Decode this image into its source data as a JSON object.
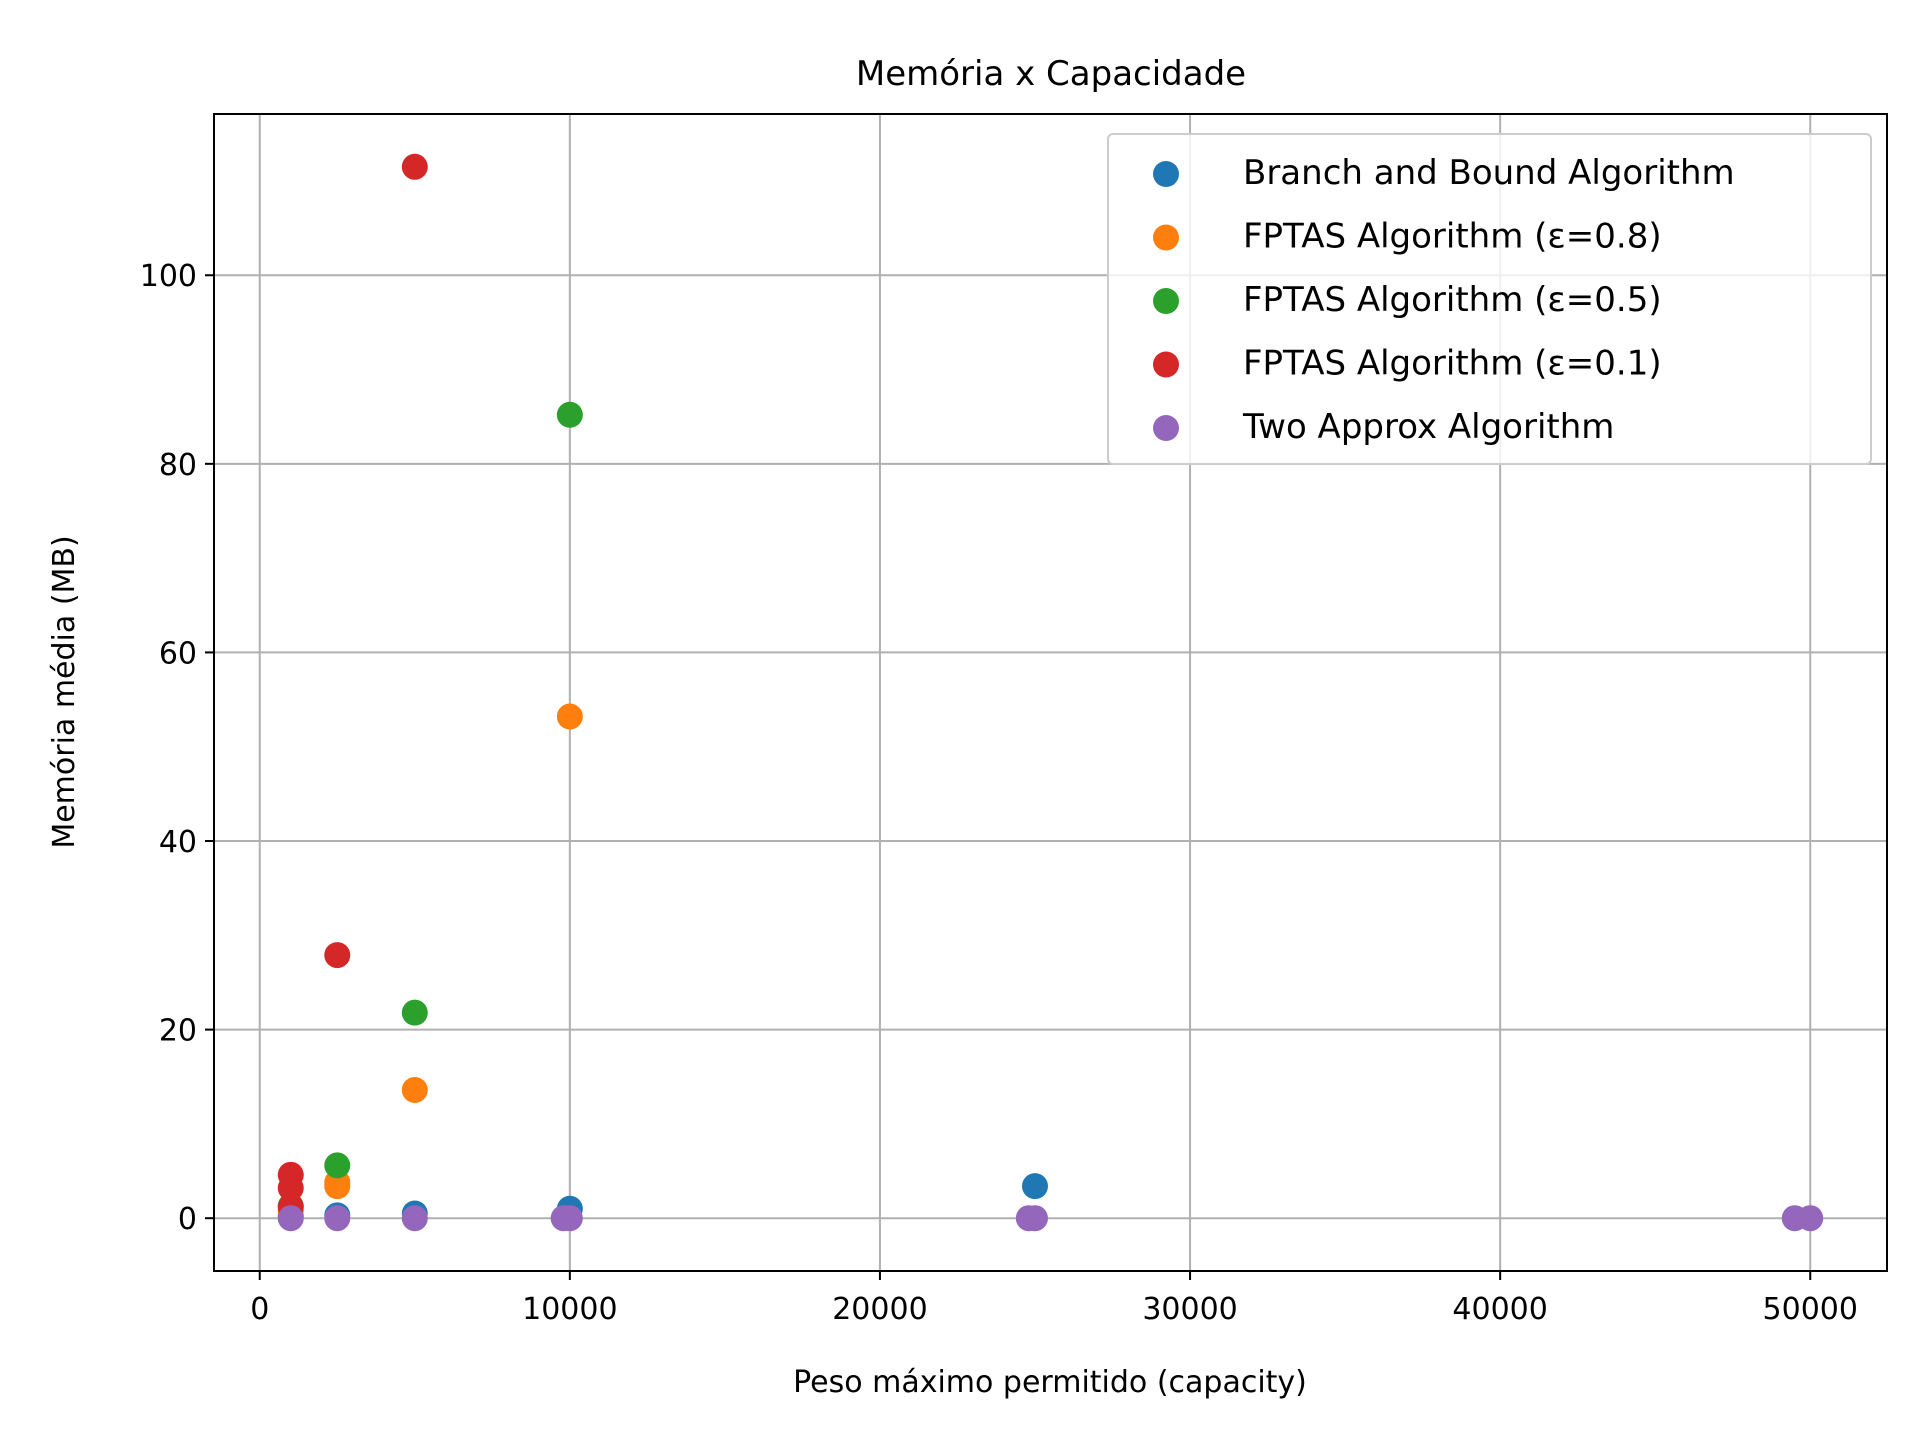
{
  "chart_data": {
    "type": "scatter",
    "title": "Memória x Capacidade",
    "xlabel": "Peso máximo permitido (capacity)",
    "ylabel": "Memória média (MB)",
    "xlim": [
      -1475,
      52475
    ],
    "ylim": [
      -5.6,
      117.1
    ],
    "xticks": [
      0,
      10000,
      20000,
      30000,
      40000,
      50000
    ],
    "xtick_labels": [
      "0",
      "10000",
      "20000",
      "30000",
      "40000",
      "50000"
    ],
    "yticks": [
      0,
      20,
      40,
      60,
      80,
      100
    ],
    "ytick_labels": [
      "0",
      "20",
      "40",
      "60",
      "80",
      "100"
    ],
    "grid": true,
    "legend_position": "top-right",
    "series": [
      {
        "name": "Branch and Bound Algorithm",
        "color": "#1f77b4",
        "x": [
          1000,
          2500,
          5000,
          10000,
          25000
        ],
        "y": [
          0.2,
          0.3,
          0.5,
          1.0,
          3.4
        ]
      },
      {
        "name": "FPTAS Algorithm (ε=0.8)",
        "color": "#ff7f0e",
        "x": [
          1000,
          2500,
          2500,
          5000,
          10000
        ],
        "y": [
          0.8,
          3.4,
          3.8,
          13.6,
          53.2
        ]
      },
      {
        "name": "FPTAS Algorithm (ε=0.5)",
        "color": "#2ca02c",
        "x": [
          1000,
          2500,
          5000,
          10000
        ],
        "y": [
          1.3,
          5.6,
          21.8,
          85.2
        ]
      },
      {
        "name": "FPTAS Algorithm (ε=0.1)",
        "color": "#d62728",
        "x": [
          1000,
          1000,
          1000,
          2500,
          5000
        ],
        "y": [
          1.2,
          3.2,
          4.6,
          27.9,
          111.5
        ]
      },
      {
        "name": "Two Approx Algorithm",
        "color": "#9467bd",
        "x": [
          1000,
          2500,
          5000,
          9800,
          10000,
          24800,
          25000,
          49500,
          50000
        ],
        "y": [
          0.0,
          0.0,
          0.0,
          0.0,
          0.0,
          0.0,
          0.0,
          0.0,
          0.0
        ]
      }
    ]
  }
}
